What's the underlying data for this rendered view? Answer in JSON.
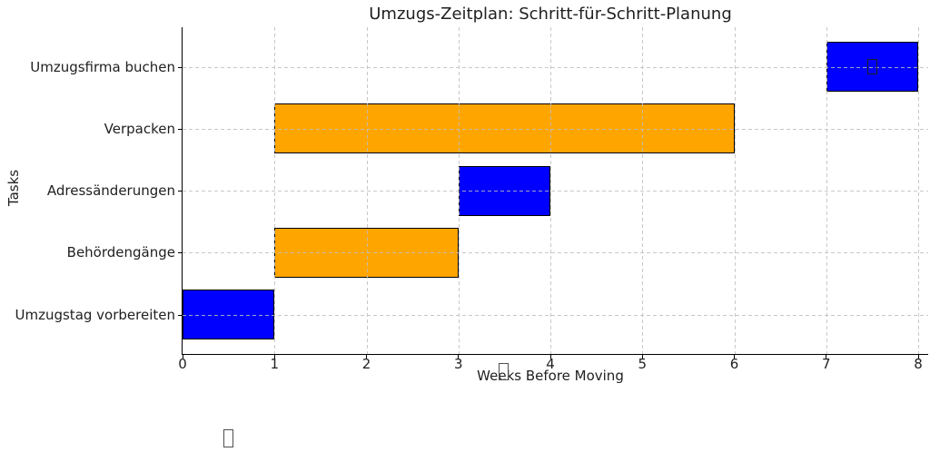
{
  "chart_data": {
    "type": "bar",
    "orientation": "horizontal_gantt",
    "title": "Umzugs-Zeitplan: Schritt-für-Schritt-Planung",
    "xlabel": "Weeks Before Moving",
    "ylabel": "Tasks",
    "xlim": [
      0,
      8.1
    ],
    "xticks": [
      0,
      1,
      2,
      3,
      4,
      5,
      6,
      7,
      8
    ],
    "grid": {
      "on": true,
      "style": "dashed",
      "color": "#bebebe"
    },
    "legend": "none",
    "categories": [
      "Umzugsfirma buchen",
      "Verpacken",
      "Adressänderungen",
      "Behördengänge",
      "Umzugstag vorbereiten"
    ],
    "bars": [
      {
        "task": "Umzugsfirma buchen",
        "start_week": 7,
        "end_week": 8,
        "color": "#0000ff",
        "glyph_overlay": "□"
      },
      {
        "task": "Verpacken",
        "start_week": 1,
        "end_week": 6,
        "color": "#ffa500"
      },
      {
        "task": "Adressänderungen",
        "start_week": 3,
        "end_week": 4,
        "color": "#0000ff"
      },
      {
        "task": "Behördengänge",
        "start_week": 1,
        "end_week": 3,
        "color": "#ffa500"
      },
      {
        "task": "Umzugstag vorbereiten",
        "start_week": 0,
        "end_week": 1,
        "color": "#0000ff"
      }
    ],
    "bar_edge_color": "#000000",
    "text_color": "#1f1f1f",
    "background": "#ffffff"
  },
  "missing_glyph_boxes": [
    {
      "glyph": "□",
      "location": "center of Umzugsfirma buchen bar"
    },
    {
      "glyph": "□",
      "location": "over xlabel near the word Weeks"
    },
    {
      "glyph": "□",
      "location": "bottom left area below the chart"
    }
  ]
}
